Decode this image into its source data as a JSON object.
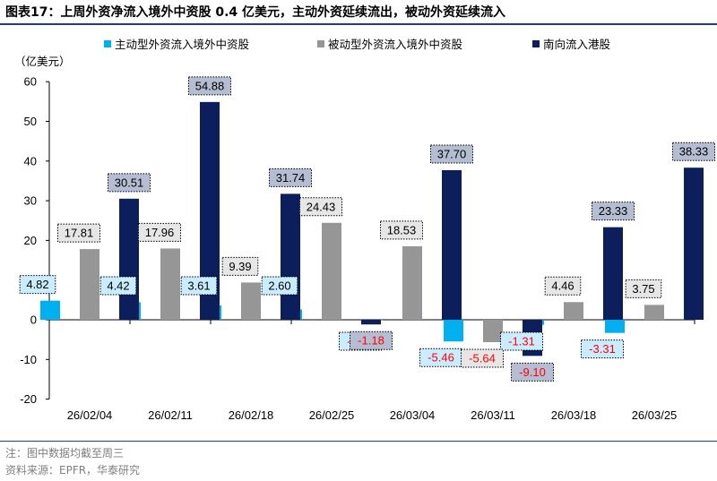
{
  "header": {
    "fig_label": "图表17：",
    "title": "上周外资净流入境外中资股 0.4 亿美元，主动外资延续流出，被动外资延续流入"
  },
  "footer": {
    "note": "注：图中数据均截至周三",
    "source": "资料来源：EPFR，华泰研究"
  },
  "colors": {
    "active": "#00b0f0",
    "passive": "#969696",
    "southbound": "#0c1f5c",
    "label_active_bg": "#c9ecff",
    "label_passive_bg": "#e6e6e6",
    "label_south_bg": "#b4bdd2",
    "negative_text": "#ff0000"
  },
  "chart_data": {
    "type": "bar",
    "unit_label": "（亿美元）",
    "categories": [
      "26/02/04",
      "26/02/11",
      "26/02/18",
      "26/02/25",
      "26/03/04",
      "26/03/11",
      "26/03/18",
      "26/03/25"
    ],
    "series": [
      {
        "name": "主动型外资流入境外中资股",
        "values": [
          4.82,
          4.42,
          3.61,
          2.6,
          -0.01,
          -5.46,
          -1.31,
          -3.31
        ],
        "color": "#00b0f0"
      },
      {
        "name": "被动型外资流入境外中资股",
        "values": [
          17.81,
          17.96,
          9.39,
          24.43,
          18.53,
          -5.64,
          4.46,
          3.75
        ],
        "color": "#969696"
      },
      {
        "name": "南向流入港股",
        "values": [
          30.51,
          54.88,
          31.74,
          -1.18,
          37.7,
          -9.1,
          23.33,
          38.33
        ],
        "color": "#0c1f5c"
      }
    ],
    "ylim": [
      -20,
      60
    ],
    "yticks": [
      -20,
      -10,
      0,
      10,
      20,
      30,
      40,
      50,
      60
    ],
    "grid": false,
    "legend_position": "top",
    "data_labels": true
  }
}
